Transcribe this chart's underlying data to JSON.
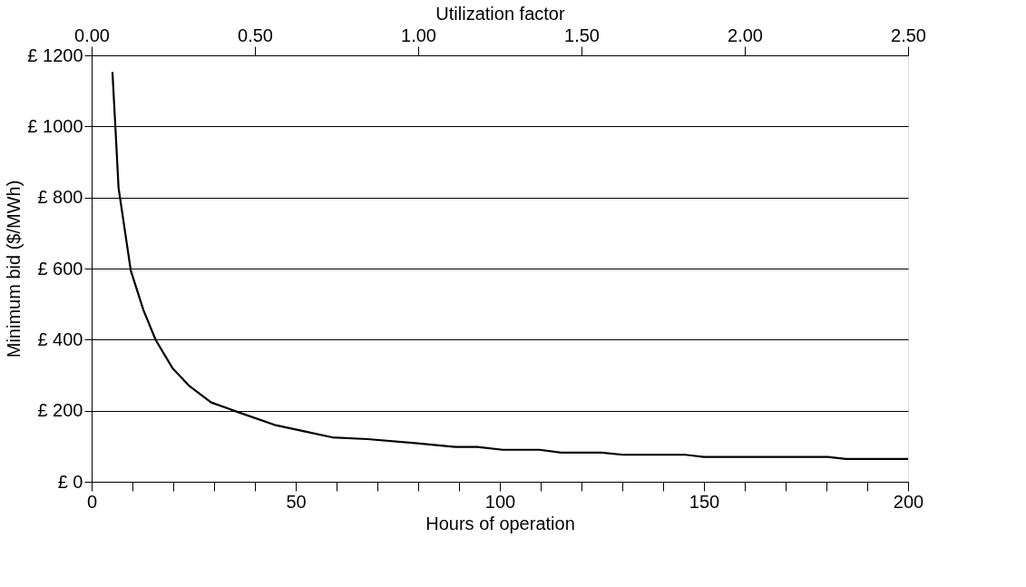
{
  "chart_data": {
    "type": "line",
    "xlabel": "Hours of operation",
    "ylabel": "Minimum bid ($/MWh)",
    "x2label": "Utilization factor",
    "x": [
      5.1,
      5.8,
      6.6,
      9.6,
      12.7,
      15.7,
      19.8,
      24,
      29.3,
      36.1,
      44.8,
      51.3,
      58.9,
      67.6,
      79.2,
      89.1,
      94.5,
      100.7,
      109.7,
      115,
      124.9,
      130.2,
      145.4,
      149.9,
      180.3,
      184.8,
      200
    ],
    "series": [
      {
        "color": "#000000",
        "values": [
          1153,
          1003,
          827,
          594,
          483,
          399,
          320,
          269,
          223,
          195,
          160,
          144,
          125,
          120,
          109,
          98,
          98,
          90,
          90,
          82,
          82,
          76,
          76,
          70,
          70,
          64,
          64
        ]
      }
    ],
    "xlim": [
      0,
      200
    ],
    "xticks": [
      0,
      {
        "value": 10,
        "label": null
      },
      {
        "value": 20,
        "label": null
      },
      {
        "value": 30,
        "label": null
      },
      {
        "value": 40,
        "label": null
      },
      50,
      {
        "value": 60,
        "label": null
      },
      {
        "value": 70,
        "label": null
      },
      {
        "value": 80,
        "label": null
      },
      {
        "value": 90,
        "label": null
      },
      100,
      {
        "value": 110,
        "label": null
      },
      {
        "value": 120,
        "label": null
      },
      {
        "value": 130,
        "label": null
      },
      {
        "value": 140,
        "label": null
      },
      150,
      {
        "value": 160,
        "label": null
      },
      {
        "value": 170,
        "label": null
      },
      {
        "value": 180,
        "label": null
      },
      {
        "value": 190,
        "label": null
      },
      200
    ],
    "x2lim": [
      0,
      2.5
    ],
    "x2ticks": [
      {
        "value": 0,
        "label": "0.00"
      },
      {
        "value": 0.5,
        "label": "0.50"
      },
      {
        "value": 1,
        "label": "1.00"
      },
      {
        "value": 1.5,
        "label": "1.50"
      },
      {
        "value": 2,
        "label": "2.00"
      },
      {
        "value": 2.5,
        "label": "2.50"
      }
    ],
    "ylim": [
      0,
      1200
    ],
    "yticks": [
      {
        "value": 0,
        "label": "£ 0"
      },
      {
        "value": 200,
        "label": "£ 200"
      },
      {
        "value": 400,
        "label": "£ 400"
      },
      {
        "value": 600,
        "label": "£ 600"
      },
      {
        "value": 800,
        "label": "£ 800"
      },
      {
        "value": 1000,
        "label": "£ 1000"
      },
      {
        "value": 1200,
        "label": "£ 1200"
      }
    ],
    "grid": "y",
    "line_style": "solid"
  }
}
